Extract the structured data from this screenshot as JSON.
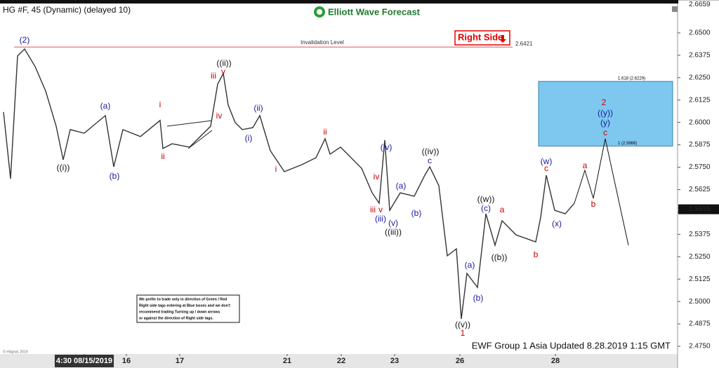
{
  "chart_data": {
    "type": "line",
    "title": "HG #F, 45 (Dynamic) (delayed 10)",
    "logo": "Elliott Wave Forecast",
    "footer": "EWF Group 1 Asia Updated 8.28.2019 1:15 GMT",
    "copyright": "© eSignal, 2019",
    "note": [
      "We prefer to trade only in direction of Green / Red",
      "Right side tags entering at Blue boxes and we don't",
      "recommend trading Turning up / down arrows",
      "or against the direction of Right side tags."
    ],
    "tag": "Right Side",
    "tag_color": "#e00000",
    "xlim": [
      0,
      965
    ],
    "ylim": [
      2.4707,
      2.6664
    ],
    "xticks": [
      {
        "value": 120,
        "label": "4:30 08/15/2019"
      },
      {
        "value": 180,
        "label": "16"
      },
      {
        "value": 256,
        "label": "17"
      },
      {
        "value": 409,
        "label": "21"
      },
      {
        "value": 486,
        "label": "22"
      },
      {
        "value": 562,
        "label": "23"
      },
      {
        "value": 655,
        "label": "26"
      },
      {
        "value": 791,
        "label": "28"
      }
    ],
    "yticks": [
      {
        "value": 2.475,
        "label": "2.4750"
      },
      {
        "value": 2.4875,
        "label": "2.4875"
      },
      {
        "value": 2.5,
        "label": "2.5000"
      },
      {
        "value": 2.5125,
        "label": "2.5125"
      },
      {
        "value": 2.525,
        "label": "2.5250"
      },
      {
        "value": 2.5375,
        "label": "2.5375"
      },
      {
        "value": 2.55,
        "label": "2.5500"
      },
      {
        "value": 2.5625,
        "label": "2.5625"
      },
      {
        "value": 2.575,
        "label": "2.5750"
      },
      {
        "value": 2.5875,
        "label": "2.5875"
      },
      {
        "value": 2.6,
        "label": "2.6000"
      },
      {
        "value": 2.6125,
        "label": "2.6125"
      },
      {
        "value": 2.625,
        "label": "2.6250"
      },
      {
        "value": 2.6375,
        "label": "2.6375"
      },
      {
        "value": 2.65,
        "label": "2.6500"
      }
    ],
    "high_price": 2.6659,
    "last_price": 2.5515,
    "series": [
      {
        "name": "HG #F",
        "color": "#333333",
        "x": [
          5,
          15,
          25,
          35,
          50,
          65,
          80,
          90,
          100,
          120,
          150,
          162,
          175,
          200,
          228,
          232,
          245,
          270,
          300,
          310,
          318,
          325,
          335,
          345,
          360,
          370,
          385,
          405,
          430,
          450,
          463,
          470,
          485,
          500,
          515,
          530,
          540,
          548,
          555,
          570,
          590,
          605,
          612,
          625,
          637,
          650,
          657,
          665,
          680,
          692,
          705,
          715,
          735,
          763,
          770,
          778,
          790,
          805,
          818
        ],
        "values": [
          2.6058,
          2.5686,
          2.6371,
          2.641,
          2.6312,
          2.6175,
          2.5979,
          2.5791,
          2.596,
          2.594,
          2.6038,
          2.5752,
          2.596,
          2.5921,
          2.6011,
          2.5854,
          2.5881,
          2.5862,
          2.5979,
          2.6214,
          2.6273,
          2.6097,
          2.5999,
          2.596,
          2.5971,
          2.6038,
          2.5842,
          2.5725,
          2.5764,
          2.5803,
          2.5909,
          2.5823,
          2.5862,
          2.5803,
          2.5744,
          2.5607,
          2.5549,
          2.5901,
          2.5509,
          2.5607,
          2.5588,
          2.5705,
          2.5752,
          2.5647,
          2.5255,
          2.5294,
          2.4903,
          2.5157,
          2.5079,
          2.549,
          2.5314,
          2.5451,
          2.5372,
          2.5333,
          2.547,
          2.5705,
          2.5509,
          2.549,
          2.5549
        ]
      },
      {
        "name": "Projection",
        "color": "#111111",
        "x": [
          818,
          833,
          845,
          862,
          895
        ],
        "values": [
          2.5549,
          2.5733,
          2.5576,
          2.5909,
          2.5314
        ]
      }
    ],
    "levels": [
      {
        "label": "Invalidation Level",
        "value": 2.6421,
        "color": "#e05050"
      }
    ],
    "box": {
      "color": "#7ec8f0",
      "top": 2.6229,
      "bottom": 2.5868,
      "top_label": "1.618 (2.6229)",
      "bottom_label": "1 (2.5868)"
    },
    "annotations": [
      {
        "text": "(2)",
        "color": "#1a1aa0"
      },
      {
        "text": "((i))",
        "color": "#111111"
      },
      {
        "text": "(a)",
        "color": "#1a1aa0"
      },
      {
        "text": "(b)",
        "color": "#1a1aa0"
      },
      {
        "text": "i",
        "color": "#cc0000"
      },
      {
        "text": "ii",
        "color": "#cc0000"
      },
      {
        "text": "iii",
        "color": "#cc0000"
      },
      {
        "text": "v",
        "color": "#cc0000"
      },
      {
        "text": "((ii))",
        "color": "#111111"
      },
      {
        "text": "iv",
        "color": "#cc0000"
      },
      {
        "text": "(ii)",
        "color": "#1a1aa0"
      },
      {
        "text": "(i)",
        "color": "#1a1aa0"
      },
      {
        "text": "i",
        "color": "#cc0000"
      },
      {
        "text": "ii",
        "color": "#cc0000"
      },
      {
        "text": "(iv)",
        "color": "#1a1aa0"
      },
      {
        "text": "((iv))",
        "color": "#111111"
      },
      {
        "text": "c",
        "color": "#1a1aa0"
      },
      {
        "text": "iv",
        "color": "#cc0000"
      },
      {
        "text": "(a)",
        "color": "#1a1aa0"
      },
      {
        "text": "iii",
        "color": "#cc0000"
      },
      {
        "text": "v",
        "color": "#cc0000"
      },
      {
        "text": "(b)",
        "color": "#1a1aa0"
      },
      {
        "text": "(iii)",
        "color": "#1a1aa0"
      },
      {
        "text": "(v)",
        "color": "#1a1aa0"
      },
      {
        "text": "((iii))",
        "color": "#111111"
      },
      {
        "text": "((w))",
        "color": "#111111"
      },
      {
        "text": "(c)",
        "color": "#1a1aa0"
      },
      {
        "text": "a",
        "color": "#cc0000"
      },
      {
        "text": "((b))",
        "color": "#111111"
      },
      {
        "text": "b",
        "color": "#cc0000"
      },
      {
        "text": "(w)",
        "color": "#1a1aa0"
      },
      {
        "text": "c",
        "color": "#cc0000"
      },
      {
        "text": "(x)",
        "color": "#1a1aa0"
      },
      {
        "text": "a",
        "color": "#cc0000"
      },
      {
        "text": "b",
        "color": "#cc0000"
      },
      {
        "text": "(a)",
        "color": "#1a1aa0"
      },
      {
        "text": "(b)",
        "color": "#1a1aa0"
      },
      {
        "text": "((v))",
        "color": "#111111"
      },
      {
        "text": "1",
        "color": "#cc0000"
      },
      {
        "text": "2",
        "color": "#cc0000"
      },
      {
        "text": "((y))",
        "color": "#1a1aa0"
      },
      {
        "text": "(y)",
        "color": "#1a1aa0"
      },
      {
        "text": "c",
        "color": "#cc0000"
      }
    ]
  }
}
